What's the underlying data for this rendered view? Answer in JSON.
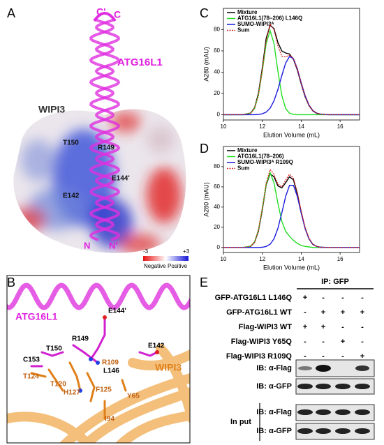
{
  "panel_labels": [
    "A",
    "B",
    "C",
    "D",
    "E"
  ],
  "panel_a": {
    "labels": [
      "C'",
      "C",
      "ATG16L1",
      "WIPI3",
      "T150",
      "R149",
      "E144'",
      "E142",
      "N",
      "N'"
    ],
    "colorbar": {
      "min_label": "-3",
      "max_label": "+3",
      "negative": "Negative",
      "positive": "Positive"
    }
  },
  "panel_b": {
    "labels": [
      "ATG16L1",
      "E144'",
      "R149",
      "E142",
      "T150",
      "C153",
      "R109",
      "L146",
      "T124",
      "T120",
      "H127",
      "F125",
      "Y65",
      "I94",
      "WIPI3"
    ]
  },
  "chart_data": [
    {
      "type": "line",
      "x_label": "Elution Volume (mL)",
      "y_label": "A280 (mAU)",
      "legend": "upper left",
      "xlim": [
        10,
        17
      ],
      "xticks": [
        10,
        12,
        14,
        16
      ],
      "ylim": [
        -5,
        100
      ],
      "yticks": [
        0,
        20,
        40,
        60,
        80
      ],
      "x": [
        10,
        11,
        11.4,
        11.6,
        11.8,
        12.0,
        12.2,
        12.4,
        12.6,
        12.8,
        13.0,
        13.2,
        13.4,
        13.6,
        13.8,
        14.0,
        14.2,
        14.4,
        14.6,
        14.8,
        15.0,
        15.4,
        16,
        17
      ],
      "series": [
        {
          "name": "Mixture",
          "color": "#000000",
          "style": "solid",
          "values": [
            0,
            0,
            1.5,
            6.5,
            20,
            44,
            72,
            84,
            81,
            68,
            60,
            58,
            57,
            52,
            42,
            29,
            17,
            8.5,
            3.5,
            1.2,
            0.4,
            0,
            0,
            0
          ]
        },
        {
          "name": "ATG16L1(78–206) L146Q",
          "color": "#22dd22",
          "style": "solid",
          "values": [
            0,
            0,
            1.3,
            5.8,
            18.2,
            41.1,
            67.1,
            79,
            67.1,
            41.1,
            18.2,
            5.8,
            1.3,
            0.2,
            0,
            0,
            0,
            0,
            0,
            0,
            0,
            0,
            0,
            0
          ]
        },
        {
          "name": "SUMO-WIPI3ᴬ",
          "color": "#1a1adf",
          "style": "solid",
          "values": [
            0,
            0,
            0,
            0,
            0.2,
            0.8,
            2.4,
            6.1,
            13.0,
            23.6,
            36.7,
            48.5,
            54.7,
            52.6,
            43.1,
            30.0,
            17.9,
            9.0,
            3.9,
            1.4,
            0.5,
            0,
            0,
            0
          ]
        },
        {
          "name": "Sum",
          "color": "#dd2222",
          "style": "dotted",
          "values": [
            0,
            0,
            1.3,
            5.8,
            18.4,
            41.9,
            69.5,
            85.1,
            80.1,
            64.7,
            54.9,
            54.3,
            56.0,
            52.8,
            43.1,
            30.0,
            17.9,
            9.0,
            3.9,
            1.4,
            0.5,
            0,
            0,
            0
          ]
        }
      ]
    },
    {
      "type": "line",
      "x_label": "Elution Volume (mL)",
      "y_label": "A280 (mAU)",
      "legend": "upper left",
      "xlim": [
        10,
        17
      ],
      "xticks": [
        10,
        12,
        14,
        16
      ],
      "ylim": [
        -5,
        100
      ],
      "yticks": [
        0,
        20,
        40,
        60,
        80
      ],
      "x": [
        10,
        11,
        11.4,
        11.6,
        11.8,
        12.0,
        12.2,
        12.4,
        12.6,
        12.8,
        13.0,
        13.2,
        13.4,
        13.6,
        13.8,
        14.0,
        14.2,
        14.4,
        14.6,
        14.8,
        15.0,
        15.4,
        16,
        17
      ],
      "series": [
        {
          "name": "Mixture",
          "color": "#000000",
          "style": "solid",
          "values": [
            0,
            0,
            1,
            5,
            16,
            37,
            62,
            73,
            70,
            61,
            59,
            64,
            70,
            67,
            53,
            35,
            19,
            8.5,
            3,
            1,
            0.2,
            0,
            0,
            0
          ]
        },
        {
          "name": "ATG16L1(78–206)",
          "color": "#22dd22",
          "style": "solid",
          "values": [
            0,
            0,
            1.2,
            5.4,
            17.1,
            38.5,
            62.9,
            74,
            64,
            44,
            26,
            16,
            11,
            7,
            4,
            2,
            1,
            0.5,
            0,
            0,
            0,
            0,
            0,
            0
          ]
        },
        {
          "name": "SUMO-WIPI3ᴬ R109Q",
          "color": "#1a1adf",
          "style": "solid",
          "values": [
            0,
            0,
            0,
            0,
            0,
            0.2,
            1.0,
            3.2,
            8.5,
            18.8,
            34.0,
            50.5,
            61.5,
            61.5,
            50.5,
            34.0,
            18.8,
            8.5,
            3.2,
            1.0,
            0.2,
            0,
            0,
            0
          ]
        },
        {
          "name": "Sum",
          "color": "#dd2222",
          "style": "dotted",
          "values": [
            0,
            0,
            1.2,
            5.4,
            17.1,
            38.7,
            63.9,
            77.2,
            72.5,
            62.8,
            60.0,
            66.5,
            72.5,
            68.5,
            54.5,
            36.0,
            19.8,
            9.0,
            3.2,
            1.0,
            0.2,
            0,
            0,
            0
          ]
        }
      ]
    }
  ],
  "panel_e": {
    "ip_label": "IP: GFP",
    "rows": [
      {
        "label": "GFP-ATG16L1 L146Q",
        "signs": [
          "+",
          "-",
          "-",
          "-"
        ]
      },
      {
        "label": "GFP-ATG16L1 WT",
        "signs": [
          "-",
          "+",
          "+",
          "+"
        ]
      },
      {
        "label": "Flag-WIPI3 WT",
        "signs": [
          "+",
          "+",
          "-",
          "-"
        ]
      },
      {
        "label": "Flag-WIPI3 Y65Q",
        "signs": [
          "-",
          "-",
          "+",
          "-"
        ]
      },
      {
        "label": "Flag-WIPI3 R109Q",
        "signs": [
          "-",
          "-",
          "-",
          "+"
        ]
      }
    ],
    "ip_blots": [
      "IB: α-Flag",
      "IB: α-GFP"
    ],
    "input_label": "In put",
    "input_blots": [
      "IB: α-Flag",
      "IB: α-GFP"
    ]
  }
}
